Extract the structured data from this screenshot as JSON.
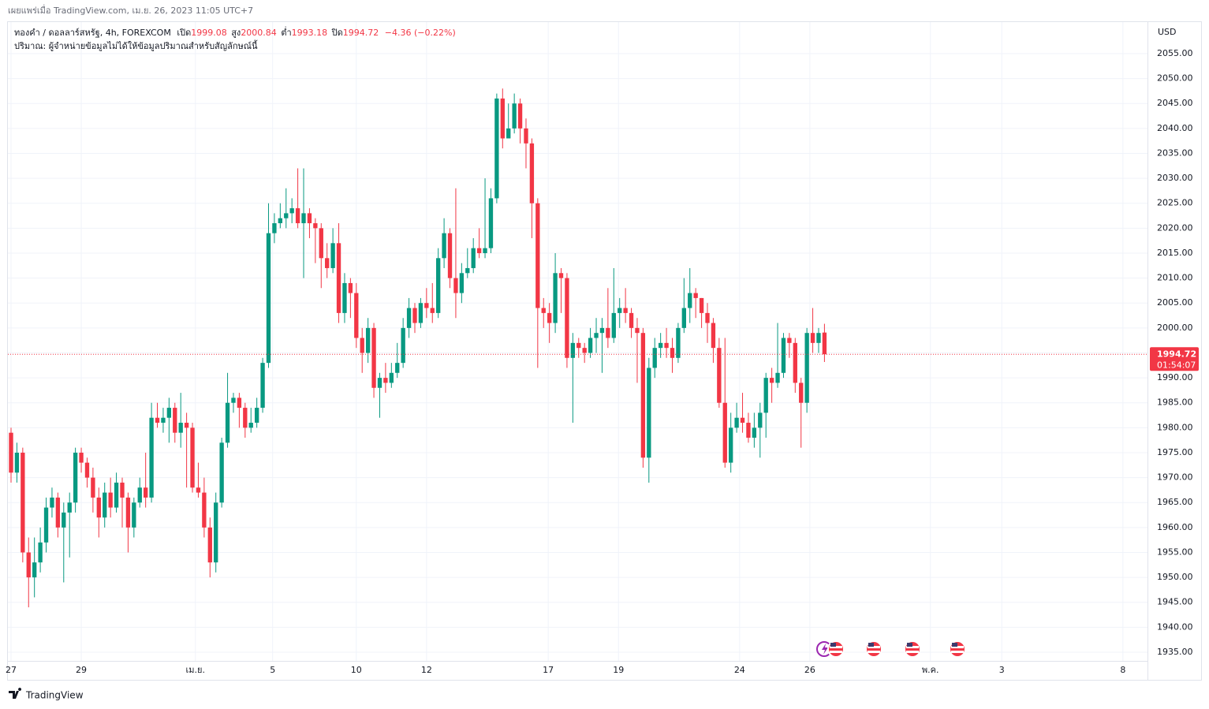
{
  "published": "เผยแพร่เมื่อ TradingView.com, เม.ย. 26, 2023 11:05 UTC+7",
  "footer_brand": "TradingView",
  "chart_data": {
    "type": "candlestick",
    "title": "ทองคำ / ดอลลาร์สหรัฐ, 4h, FOREXCOM",
    "legend_labels": {
      "open": "เปิด",
      "high": "สูง",
      "low": "ต่ำ",
      "close": "ปิด"
    },
    "change_label": "−4.36 (−0.22%)",
    "volume_note": "ปริมาณ: ผู้จำหน่ายข้อมูลไม่ได้ให้ข้อมูลปริมาณสำหรับสัญลักษณ์นี้",
    "y_unit": "USD",
    "countdown": "01:54:07",
    "up_color": "#089981",
    "down_color": "#f23645",
    "open": [
      1979,
      1971,
      1975,
      1955,
      1950,
      1953,
      1957,
      1964,
      1966,
      1960,
      1963,
      1965,
      1975,
      1973,
      1970,
      1966,
      1962,
      1967,
      1964,
      1969,
      1966,
      1960,
      1965,
      1968,
      1966,
      1982,
      1981,
      1982,
      1984,
      1979,
      1981,
      1980,
      1968,
      1967,
      1960,
      1953,
      1965,
      1977,
      1985,
      1986,
      1984,
      1980,
      1981,
      1984,
      1993,
      2019,
      2021,
      2022,
      2023,
      2024,
      2021,
      2023,
      2021,
      2020,
      2014,
      2012,
      2017,
      2003,
      2009,
      2007,
      1998,
      1995,
      2000,
      1988,
      1990,
      1989,
      1991,
      1993,
      2000,
      2004,
      2001,
      2005,
      2004,
      2003,
      2014,
      2019,
      2010,
      2007,
      2011,
      2012,
      2016,
      2015,
      2016,
      2026,
      2046,
      2038,
      2040,
      2045,
      2040,
      2037,
      2025,
      2004,
      2003,
      2001,
      2011,
      2010,
      1994,
      1997,
      1996,
      1995,
      1998,
      1999,
      2000,
      1998,
      2003,
      2004,
      2003,
      2000,
      1999,
      1974,
      1992,
      1996,
      1997,
      1996,
      1994,
      2000,
      2004,
      2007,
      2006,
      2003,
      2001,
      1996,
      1985,
      1973,
      1980,
      1982,
      1981,
      1978,
      1980,
      1983,
      1990,
      1989,
      1991,
      1998,
      1997,
      1989,
      1985,
      1999,
      1997,
      1999.08
    ],
    "high": [
      1980,
      1977,
      1976,
      1958,
      1958,
      1960,
      1966,
      1968,
      1967,
      1965,
      1967,
      1976,
      1976,
      1974,
      1972,
      1968,
      1969,
      1970,
      1971,
      1970,
      1967,
      1966,
      1970,
      1975,
      1985,
      1985,
      1984,
      1986,
      1985,
      1987,
      1983,
      1981,
      1973,
      1970,
      1962,
      1967,
      1978,
      1991,
      1987,
      1987,
      1985,
      1984,
      1986,
      1994,
      2025,
      2023,
      2025,
      2028,
      2026,
      2032,
      2032,
      2024,
      2022,
      2021,
      2017,
      2020,
      2021,
      2011,
      2010,
      2009,
      2000,
      2002,
      2001,
      1991,
      1993,
      1993,
      1997,
      2002,
      2006,
      2005,
      2006,
      2008,
      2009,
      2016,
      2022,
      2020,
      2028,
      2013,
      2016,
      2018,
      2020,
      2030,
      2028,
      2047,
      2048,
      2045,
      2047,
      2046,
      2042,
      2038,
      2026,
      2006,
      2005,
      2015,
      2012,
      2011,
      1999,
      1998,
      1997,
      2000,
      2002,
      2002,
      2008,
      2012,
      2006,
      2008,
      2004,
      2002,
      2000,
      1994,
      1998,
      1999,
      2000,
      1998,
      2001,
      2010,
      2012,
      2008,
      2006,
      2005,
      2002,
      1998,
      1998,
      1983,
      1985,
      1987,
      1983,
      1983,
      1985,
      1991,
      1992,
      2001,
      1999,
      1999,
      1998,
      1990,
      2000,
      2004,
      2000,
      2000.84
    ],
    "low": [
      1969,
      1969,
      1953,
      1944,
      1946,
      1951,
      1955,
      1962,
      1958,
      1949,
      1954,
      1963,
      1971,
      1968,
      1963,
      1958,
      1960,
      1962,
      1963,
      1960,
      1955,
      1958,
      1964,
      1964,
      1965,
      1980,
      1979,
      1977,
      1977,
      1976,
      1968,
      1967,
      1966,
      1958,
      1950,
      1951,
      1964,
      1976,
      1983,
      1980,
      1978,
      1979,
      1980,
      1983,
      1992,
      2017,
      2020,
      2020,
      2021,
      2020,
      2010,
      2018,
      2013,
      2008,
      2010,
      2011,
      2001,
      2001,
      2002,
      1996,
      1991,
      1993,
      1986,
      1982,
      1987,
      1988,
      1990,
      1992,
      1998,
      1999,
      2000,
      2002,
      2001,
      2002,
      2012,
      2008,
      2002,
      2005,
      2010,
      2011,
      2014,
      2014,
      2015,
      2025,
      2036,
      2038,
      2039,
      2037,
      2032,
      2018,
      1992,
      2000,
      1997,
      1999,
      2003,
      1992,
      1981,
      1994,
      1993,
      1994,
      1995,
      1991,
      1996,
      1997,
      2000,
      2001,
      1998,
      1989,
      1972,
      1969,
      1990,
      1994,
      1994,
      1991,
      1993,
      1999,
      2001,
      2002,
      2000,
      1997,
      1993,
      1984,
      1972,
      1971,
      1979,
      1979,
      1977,
      1976,
      1974,
      1978,
      1985,
      1988,
      1990,
      1994,
      1987,
      1976,
      1983,
      1995,
      1995,
      1993.18
    ],
    "close": [
      1971,
      1975,
      1955,
      1950,
      1953,
      1957,
      1964,
      1966,
      1960,
      1963,
      1965,
      1975,
      1973,
      1970,
      1966,
      1962,
      1967,
      1964,
      1969,
      1966,
      1960,
      1965,
      1968,
      1966,
      1982,
      1981,
      1982,
      1984,
      1979,
      1981,
      1980,
      1968,
      1967,
      1960,
      1953,
      1965,
      1977,
      1985,
      1986,
      1984,
      1980,
      1981,
      1984,
      1993,
      2019,
      2021,
      2022,
      2023,
      2024,
      2021,
      2023,
      2021,
      2020,
      2014,
      2012,
      2017,
      2003,
      2009,
      2007,
      1998,
      1995,
      2000,
      1988,
      1990,
      1989,
      1991,
      1993,
      2000,
      2004,
      2001,
      2005,
      2004,
      2003,
      2014,
      2019,
      2010,
      2007,
      2011,
      2012,
      2016,
      2015,
      2016,
      2026,
      2046,
      2038,
      2040,
      2045,
      2040,
      2037,
      2025,
      2004,
      2003,
      2001,
      2011,
      2010,
      1994,
      1997,
      1996,
      1995,
      1998,
      1999,
      2000,
      1998,
      2003,
      2004,
      2003,
      2000,
      1999,
      1974,
      1992,
      1996,
      1997,
      1996,
      1994,
      2000,
      2004,
      2007,
      2006,
      2003,
      2001,
      1996,
      1985,
      1973,
      1980,
      1982,
      1981,
      1978,
      1980,
      1983,
      1990,
      1989,
      1991,
      1998,
      1997,
      1989,
      1985,
      1999,
      1997,
      1999,
      1994.72
    ],
    "xlim": [
      -0.54,
      194.2
    ],
    "xticks": [
      {
        "value": 0,
        "label": "27"
      },
      {
        "value": 12,
        "label": "29"
      },
      {
        "value": 31.5,
        "label": "เม.ย."
      },
      {
        "value": 44.7,
        "label": "5"
      },
      {
        "value": 59,
        "label": "10"
      },
      {
        "value": 71,
        "label": "12"
      },
      {
        "value": 91.8,
        "label": "17"
      },
      {
        "value": 103.8,
        "label": "19"
      },
      {
        "value": 124.5,
        "label": "24"
      },
      {
        "value": 136.5,
        "label": "26"
      },
      {
        "value": 157.1,
        "label": "พ.ค."
      },
      {
        "value": 169.3,
        "label": "3"
      },
      {
        "value": 190,
        "label": "8"
      }
    ],
    "ylim": [
      1933.26,
      2061.32
    ],
    "yticks": [
      {
        "value": 1935,
        "label": "1935.00"
      },
      {
        "value": 1940,
        "label": "1940.00"
      },
      {
        "value": 1945,
        "label": "1945.00"
      },
      {
        "value": 1950,
        "label": "1950.00"
      },
      {
        "value": 1955,
        "label": "1955.00"
      },
      {
        "value": 1960,
        "label": "1960.00"
      },
      {
        "value": 1965,
        "label": "1965.00"
      },
      {
        "value": 1970,
        "label": "1970.00"
      },
      {
        "value": 1975,
        "label": "1975.00"
      },
      {
        "value": 1980,
        "label": "1980.00"
      },
      {
        "value": 1985,
        "label": "1985.00"
      },
      {
        "value": 1990,
        "label": "1990.00"
      },
      {
        "value": 1995,
        "label": "1995.00"
      },
      {
        "value": 2000,
        "label": "2000.00"
      },
      {
        "value": 2005,
        "label": "2005.00"
      },
      {
        "value": 2010,
        "label": "2010.00"
      },
      {
        "value": 2015,
        "label": "2015.00"
      },
      {
        "value": 2020,
        "label": "2020.00"
      },
      {
        "value": 2025,
        "label": "2025.00"
      },
      {
        "value": 2030,
        "label": "2030.00"
      },
      {
        "value": 2035,
        "label": "2035.00"
      },
      {
        "value": 2040,
        "label": "2040.00"
      },
      {
        "value": 2045,
        "label": "2045.00"
      },
      {
        "value": 2050,
        "label": "2050.00"
      },
      {
        "value": 2055,
        "label": "2055.00"
      }
    ],
    "grid": true
  }
}
